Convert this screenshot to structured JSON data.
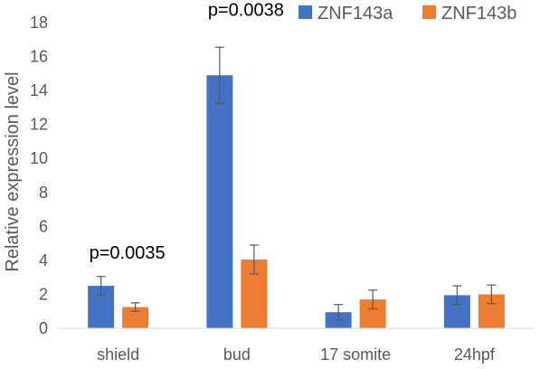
{
  "chart_data": {
    "type": "bar",
    "title": "",
    "xlabel": "",
    "ylabel": "Relative expression level",
    "ylim": [
      0,
      18
    ],
    "yticks": [
      0,
      2,
      4,
      6,
      8,
      10,
      12,
      14,
      16,
      18
    ],
    "grid": false,
    "legend_position": "top-right",
    "categories": [
      "shield",
      "bud",
      "17 somite",
      "24hpf"
    ],
    "series": [
      {
        "name": "ZNF143a",
        "color": "#4472C4",
        "values": [
          2.5,
          14.9,
          0.95,
          1.95
        ],
        "errors": [
          0.55,
          1.65,
          0.45,
          0.55
        ]
      },
      {
        "name": "ZNF143b",
        "color": "#ED7D31",
        "values": [
          1.25,
          4.05,
          1.7,
          2.0
        ],
        "errors": [
          0.25,
          0.85,
          0.55,
          0.55
        ]
      }
    ],
    "annotations": [
      {
        "text": "p=0.0035",
        "category": "shield",
        "y": 4.1
      },
      {
        "text": "p=0.0038",
        "category": "bud",
        "y": 18.4
      }
    ]
  }
}
